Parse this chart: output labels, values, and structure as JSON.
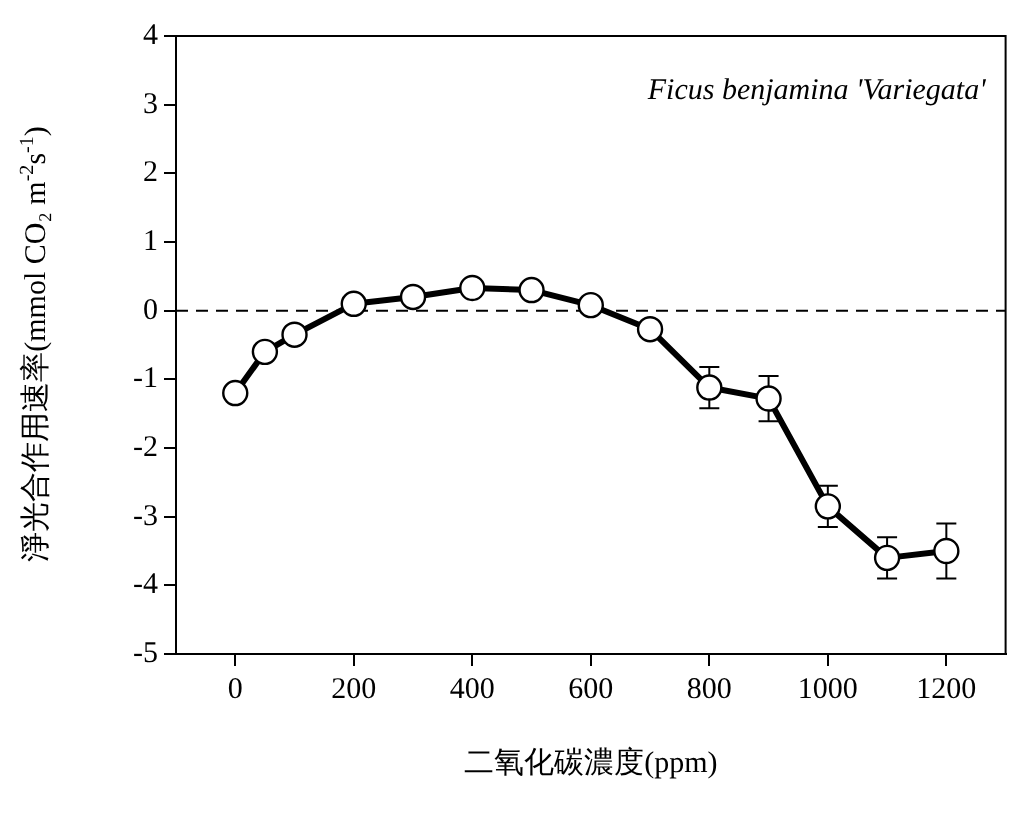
{
  "chart_data": {
    "type": "line",
    "xlabel": "二氧化碳濃度(ppm)",
    "ylabel": "淨光合作用速率(mmol CO₂ m$^{-2}$s$^{-1}$)",
    "annotations": [
      "Ficus benjamina 'Variegata'"
    ],
    "x": [
      0,
      50,
      100,
      200,
      300,
      400,
      500,
      600,
      700,
      800,
      900,
      1000,
      1100,
      1200
    ],
    "series": [
      {
        "color": "#000000",
        "values": [
          -1.2,
          -0.6,
          -0.35,
          0.1,
          0.2,
          0.33,
          0.3,
          0.08,
          -0.27,
          -1.12,
          -1.28,
          -2.85,
          -3.6,
          -3.5
        ],
        "errors": [
          null,
          null,
          null,
          null,
          null,
          null,
          null,
          null,
          null,
          0.3,
          0.33,
          0.3,
          0.3,
          0.4
        ]
      }
    ],
    "xlim": [
      -100,
      1300
    ],
    "xticks": [
      0,
      200,
      400,
      600,
      800,
      1000,
      1200
    ],
    "ylim": [
      -5,
      4
    ],
    "yticks": [
      -5,
      -4,
      -3,
      -2,
      -1,
      0,
      1,
      2,
      3,
      4
    ],
    "ref_lines": [
      {
        "axis": "y",
        "value": 0,
        "line_style": "dashed",
        "color": "#000000"
      }
    ],
    "grid": false,
    "legend": false,
    "marker": "circle",
    "line_style": "solid"
  }
}
